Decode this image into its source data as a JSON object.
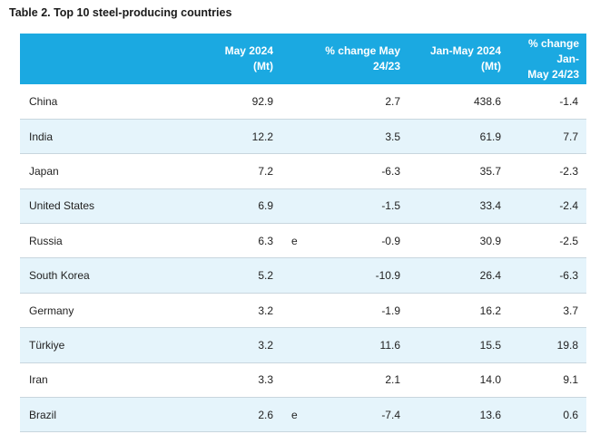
{
  "title": "Table 2. Top 10 steel-producing countries",
  "columns": {
    "may2024": "May 2024\n(Mt)",
    "pct_may": "% change May\n24/23",
    "janmay": "Jan-May 2024\n(Mt)",
    "pct_janmay": "% change Jan-\nMay 24/23"
  },
  "rows": [
    {
      "country": "China",
      "may2024": "92.9",
      "note": "",
      "pct_may": "2.7",
      "janmay": "438.6",
      "pct_janmay": "-1.4"
    },
    {
      "country": "India",
      "may2024": "12.2",
      "note": "",
      "pct_may": "3.5",
      "janmay": "61.9",
      "pct_janmay": "7.7"
    },
    {
      "country": "Japan",
      "may2024": "7.2",
      "note": "",
      "pct_may": "-6.3",
      "janmay": "35.7",
      "pct_janmay": "-2.3"
    },
    {
      "country": "United States",
      "may2024": "6.9",
      "note": "",
      "pct_may": "-1.5",
      "janmay": "33.4",
      "pct_janmay": "-2.4"
    },
    {
      "country": "Russia",
      "may2024": "6.3",
      "note": "e",
      "pct_may": "-0.9",
      "janmay": "30.9",
      "pct_janmay": "-2.5"
    },
    {
      "country": "South Korea",
      "may2024": "5.2",
      "note": "",
      "pct_may": "-10.9",
      "janmay": "26.4",
      "pct_janmay": "-6.3"
    },
    {
      "country": "Germany",
      "may2024": "3.2",
      "note": "",
      "pct_may": "-1.9",
      "janmay": "16.2",
      "pct_janmay": "3.7"
    },
    {
      "country": "Türkiye",
      "may2024": "3.2",
      "note": "",
      "pct_may": "11.6",
      "janmay": "15.5",
      "pct_janmay": "19.8"
    },
    {
      "country": "Iran",
      "may2024": "3.3",
      "note": "",
      "pct_may": "2.1",
      "janmay": "14.0",
      "pct_janmay": "9.1"
    },
    {
      "country": "Brazil",
      "may2024": "2.6",
      "note": "e",
      "pct_may": "-7.4",
      "janmay": "13.6",
      "pct_janmay": "0.6"
    }
  ],
  "colors": {
    "header_bg": "#1ba9e1",
    "stripe_bg": "#e5f4fb"
  }
}
